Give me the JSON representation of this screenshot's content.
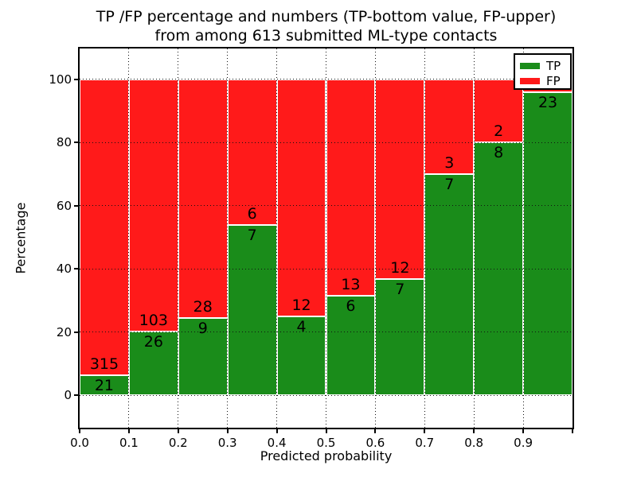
{
  "figure": {
    "title_line1": "TP /FP percentage and numbers (TP-bottom value, FP-upper)",
    "title_line2": "from among 613 submitted ML-type contacts"
  },
  "chart_data": {
    "type": "bar",
    "stacked": true,
    "title": "TP /FP percentage and numbers (TP-bottom value, FP-upper) from among 613 submitted ML-type contacts",
    "xlabel": "Predicted probability",
    "ylabel": "Percentage",
    "xlim": [
      0.0,
      1.0
    ],
    "ylim": [
      -10.3,
      109.8
    ],
    "grid": "dotted both axes",
    "bin_width": 0.1,
    "bin_starts": [
      0.0,
      0.1,
      0.2,
      0.3,
      0.4,
      0.5,
      0.6,
      0.7,
      0.8,
      0.9
    ],
    "xtick_labels": [
      "0.0",
      "0.1",
      "0.2",
      "0.3",
      "0.4",
      "0.5",
      "0.6",
      "0.7",
      "0.8",
      "0.9"
    ],
    "yticks": [
      0,
      20,
      40,
      60,
      80,
      100
    ],
    "series": [
      {
        "name": "TP",
        "color": "#1a8c1a",
        "counts": [
          21,
          26,
          9,
          7,
          4,
          6,
          7,
          7,
          8,
          23
        ],
        "labels": [
          "21",
          "26",
          "9",
          "7",
          "4",
          "6",
          "7",
          "7",
          "8",
          "23"
        ]
      },
      {
        "name": "FP",
        "color": "#ff1a1a",
        "counts": [
          315,
          103,
          28,
          6,
          12,
          13,
          12,
          3,
          2,
          1
        ],
        "labels": [
          "315",
          "103",
          "28",
          "6",
          "12",
          "13",
          "12",
          "3",
          "2",
          ""
        ]
      }
    ],
    "tp_percent_of_bin": [
      6.25,
      20.16,
      24.32,
      53.85,
      25.0,
      31.58,
      36.84,
      70.0,
      80.0,
      95.83
    ],
    "legend": {
      "position": "upper right",
      "entries": [
        {
          "label": "TP",
          "color": "#1a8c1a"
        },
        {
          "label": "FP",
          "color": "#ff1a1a"
        }
      ]
    }
  }
}
